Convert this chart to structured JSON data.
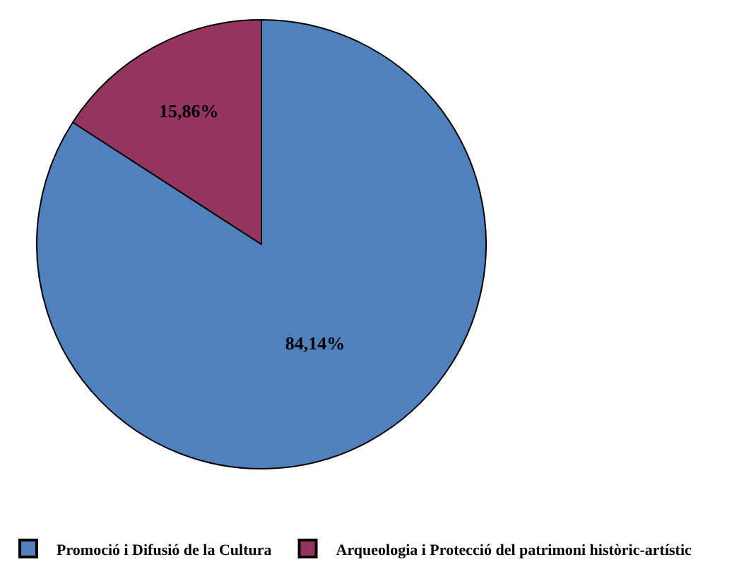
{
  "chart_data": {
    "type": "pie",
    "categories": [
      "Promoció i Difusió de la Cultura",
      "Arqueologia i Protecció del patrimoni històric-artístic"
    ],
    "values": [
      84.14,
      15.86
    ],
    "colors": [
      "#4f81bd",
      "#963460"
    ],
    "value_labels": [
      "84,14%",
      "15,86%"
    ],
    "legend": "bottom"
  }
}
